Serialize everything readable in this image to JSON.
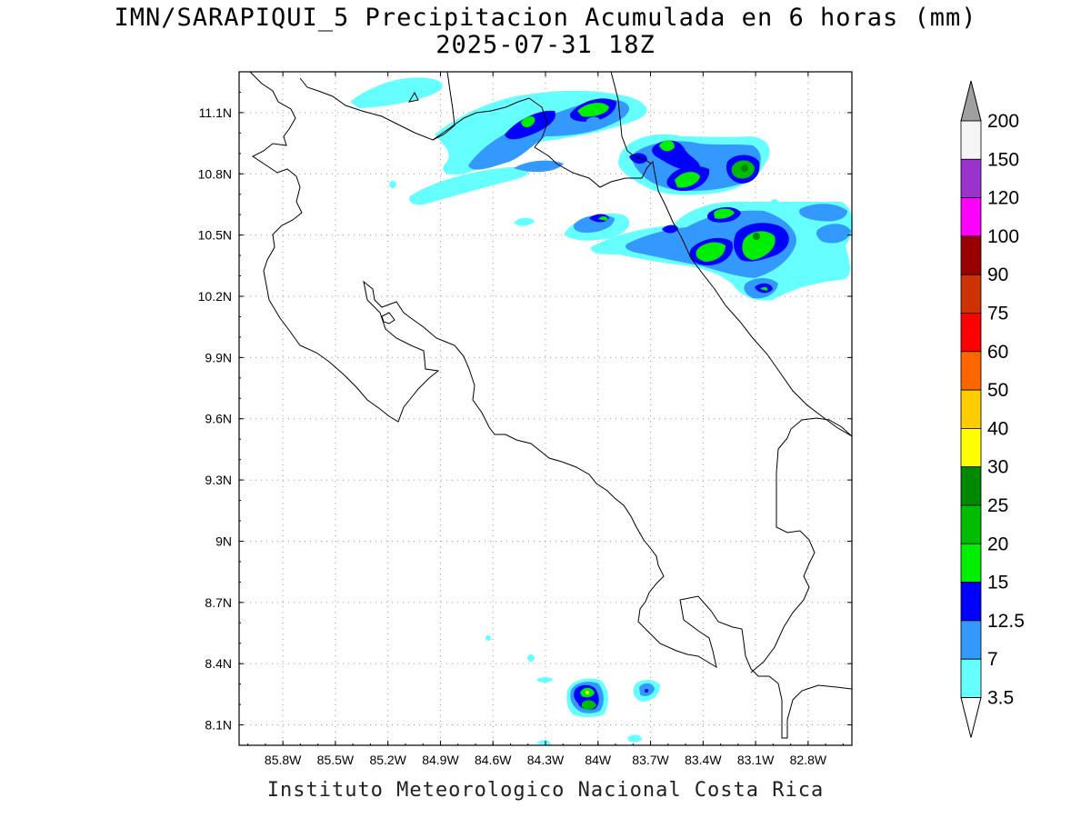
{
  "header": {
    "title": "IMN/SARAPIQUI_5 Precipitacion Acumulada en 6 horas (mm)",
    "subtitle": "2025-07-31 18Z"
  },
  "footer": {
    "credit": "Instituto Meteorologico Nacional Costa Rica"
  },
  "map": {
    "lon_range": [
      -86.05,
      -82.55
    ],
    "lat_range": [
      8.0,
      11.3
    ],
    "lon_ticks": [
      {
        "value": -85.8,
        "label": "85.8W"
      },
      {
        "value": -85.5,
        "label": "85.5W"
      },
      {
        "value": -85.2,
        "label": "85.2W"
      },
      {
        "value": -84.9,
        "label": "84.9W"
      },
      {
        "value": -84.6,
        "label": "84.6W"
      },
      {
        "value": -84.3,
        "label": "84.3W"
      },
      {
        "value": -84.0,
        "label": "84W"
      },
      {
        "value": -83.7,
        "label": "83.7W"
      },
      {
        "value": -83.4,
        "label": "83.4W"
      },
      {
        "value": -83.1,
        "label": "83.1W"
      },
      {
        "value": -82.8,
        "label": "82.8W"
      }
    ],
    "lat_ticks": [
      {
        "value": 11.1,
        "label": "11.1N"
      },
      {
        "value": 10.8,
        "label": "10.8N"
      },
      {
        "value": 10.5,
        "label": "10.5N"
      },
      {
        "value": 10.2,
        "label": "10.2N"
      },
      {
        "value": 9.9,
        "label": "9.9N"
      },
      {
        "value": 9.6,
        "label": "9.6N"
      },
      {
        "value": 9.3,
        "label": "9.3N"
      },
      {
        "value": 9.0,
        "label": "9N"
      },
      {
        "value": 8.7,
        "label": "8.7N"
      },
      {
        "value": 8.4,
        "label": "8.4N"
      },
      {
        "value": 8.1,
        "label": "8.1N"
      }
    ],
    "grid": true,
    "coastline_color": "#000000"
  },
  "colorbar": {
    "bins": [
      {
        "label": "200",
        "color": "#a0a0a0"
      },
      {
        "label": "150",
        "color": "#f5f5f5"
      },
      {
        "label": "120",
        "color": "#9933cc"
      },
      {
        "label": "100",
        "color": "#ff00ff"
      },
      {
        "label": "90",
        "color": "#990000"
      },
      {
        "label": "75",
        "color": "#cc3300"
      },
      {
        "label": "60",
        "color": "#ff0000"
      },
      {
        "label": "50",
        "color": "#ff6600"
      },
      {
        "label": "40",
        "color": "#ffcc00"
      },
      {
        "label": "30",
        "color": "#ffff00"
      },
      {
        "label": "25",
        "color": "#008800"
      },
      {
        "label": "20",
        "color": "#00bb00"
      },
      {
        "label": "15",
        "color": "#00ee00"
      },
      {
        "label": "12.5",
        "color": "#0000ff"
      },
      {
        "label": "7",
        "color": "#3399ff"
      },
      {
        "label": "3.5",
        "color": "#66ffff"
      }
    ],
    "under_color": "#ffffff"
  },
  "precipitation_colors": {
    "level_3_5": "#66ffff",
    "level_7": "#3399ff",
    "level_12_5": "#0000ff",
    "level_15": "#00ee00",
    "level_20": "#00bb00",
    "level_25": "#008800"
  }
}
